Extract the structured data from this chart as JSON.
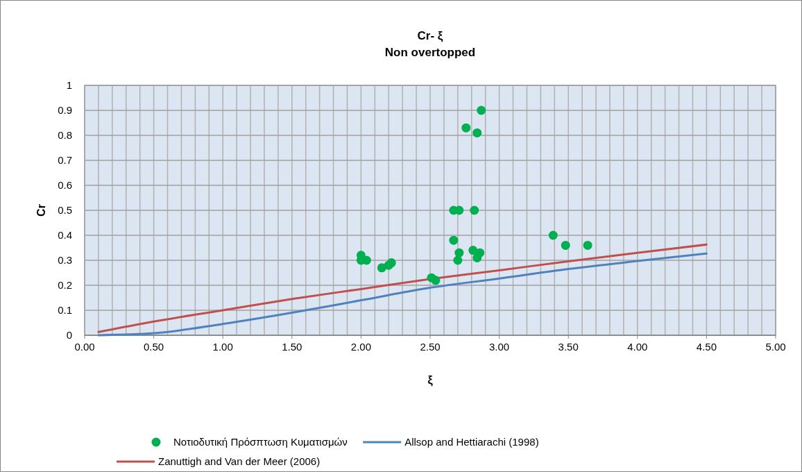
{
  "chart_data": {
    "type": "scatter",
    "title": "Cr- ξ",
    "subtitle": "Non overtopped",
    "xlabel": "ξ",
    "ylabel": "Cr",
    "xlim": [
      0,
      5
    ],
    "ylim": [
      0,
      1
    ],
    "xticks": [
      {
        "value": 0,
        "label": "0.00"
      },
      {
        "value": 0.1,
        "label": null
      },
      {
        "value": 0.2,
        "label": null
      },
      {
        "value": 0.3,
        "label": null
      },
      {
        "value": 0.4,
        "label": null
      },
      {
        "value": 0.5,
        "label": "0.50"
      },
      {
        "value": 0.6,
        "label": null
      },
      {
        "value": 0.7,
        "label": null
      },
      {
        "value": 0.8,
        "label": null
      },
      {
        "value": 0.9,
        "label": null
      },
      {
        "value": 1,
        "label": "1.00"
      },
      {
        "value": 1.1,
        "label": null
      },
      {
        "value": 1.2,
        "label": null
      },
      {
        "value": 1.3,
        "label": null
      },
      {
        "value": 1.4,
        "label": null
      },
      {
        "value": 1.5,
        "label": "1.50"
      },
      {
        "value": 1.6,
        "label": null
      },
      {
        "value": 1.7,
        "label": null
      },
      {
        "value": 1.8,
        "label": null
      },
      {
        "value": 1.9,
        "label": null
      },
      {
        "value": 2,
        "label": "2.00"
      },
      {
        "value": 2.1,
        "label": null
      },
      {
        "value": 2.2,
        "label": null
      },
      {
        "value": 2.3,
        "label": null
      },
      {
        "value": 2.4,
        "label": null
      },
      {
        "value": 2.5,
        "label": "2.50"
      },
      {
        "value": 2.6,
        "label": null
      },
      {
        "value": 2.7,
        "label": null
      },
      {
        "value": 2.8,
        "label": null
      },
      {
        "value": 2.9,
        "label": null
      },
      {
        "value": 3,
        "label": "3.00"
      },
      {
        "value": 3.1,
        "label": null
      },
      {
        "value": 3.2,
        "label": null
      },
      {
        "value": 3.3,
        "label": null
      },
      {
        "value": 3.4,
        "label": null
      },
      {
        "value": 3.5,
        "label": "3.50"
      },
      {
        "value": 3.6,
        "label": null
      },
      {
        "value": 3.7,
        "label": null
      },
      {
        "value": 3.8,
        "label": null
      },
      {
        "value": 3.9,
        "label": null
      },
      {
        "value": 4,
        "label": "4.00"
      },
      {
        "value": 4.1,
        "label": null
      },
      {
        "value": 4.2,
        "label": null
      },
      {
        "value": 4.3,
        "label": null
      },
      {
        "value": 4.4,
        "label": null
      },
      {
        "value": 4.5,
        "label": "4.50"
      },
      {
        "value": 4.6,
        "label": null
      },
      {
        "value": 4.7,
        "label": null
      },
      {
        "value": 4.8,
        "label": null
      },
      {
        "value": 4.9,
        "label": null
      },
      {
        "value": 5,
        "label": "5.00"
      }
    ],
    "yticks": [
      0,
      0.1,
      0.2,
      0.3,
      0.4,
      0.5,
      0.6,
      0.7,
      0.8,
      0.9,
      1
    ],
    "grid": true,
    "legend": "bottom",
    "marker": "circle",
    "series": [
      {
        "name": "Νοτιοδυτική Πρόσπτωση Κυματισμών",
        "color": "#00b050",
        "x": [
          2.87,
          2.76,
          2.84,
          2.67,
          2.71,
          2.82,
          2.67,
          2.71,
          2.7,
          2.81,
          2.86,
          2.84,
          2.0,
          2.0,
          2.04,
          2.15,
          2.2,
          2.22,
          2.51,
          2.54,
          3.39,
          3.48,
          3.64
        ],
        "values": [
          0.9,
          0.83,
          0.81,
          0.5,
          0.5,
          0.5,
          0.38,
          0.33,
          0.3,
          0.34,
          0.33,
          0.31,
          0.32,
          0.3,
          0.3,
          0.27,
          0.28,
          0.29,
          0.23,
          0.22,
          0.4,
          0.36,
          0.36
        ]
      },
      {
        "name": "Allsop and Hettiarachi (1998)",
        "type": "line",
        "marker": "none",
        "color": "#4f81bd",
        "x": [
          0.1,
          0.5,
          1.0,
          1.5,
          2.0,
          2.5,
          3.0,
          3.5,
          4.0,
          4.5
        ],
        "values": [
          0.0,
          0.008,
          0.045,
          0.09,
          0.14,
          0.19,
          0.227,
          0.265,
          0.297,
          0.327
        ]
      },
      {
        "name": "Zanuttigh and Van der Meer (2006)",
        "type": "line",
        "marker": "none",
        "color": "#c0504d",
        "x": [
          0.1,
          0.5,
          1.0,
          1.5,
          2.0,
          2.5,
          3.0,
          3.5,
          4.0,
          4.5
        ],
        "values": [
          0.013,
          0.055,
          0.1,
          0.145,
          0.185,
          0.225,
          0.26,
          0.296,
          0.33,
          0.363
        ]
      }
    ]
  }
}
